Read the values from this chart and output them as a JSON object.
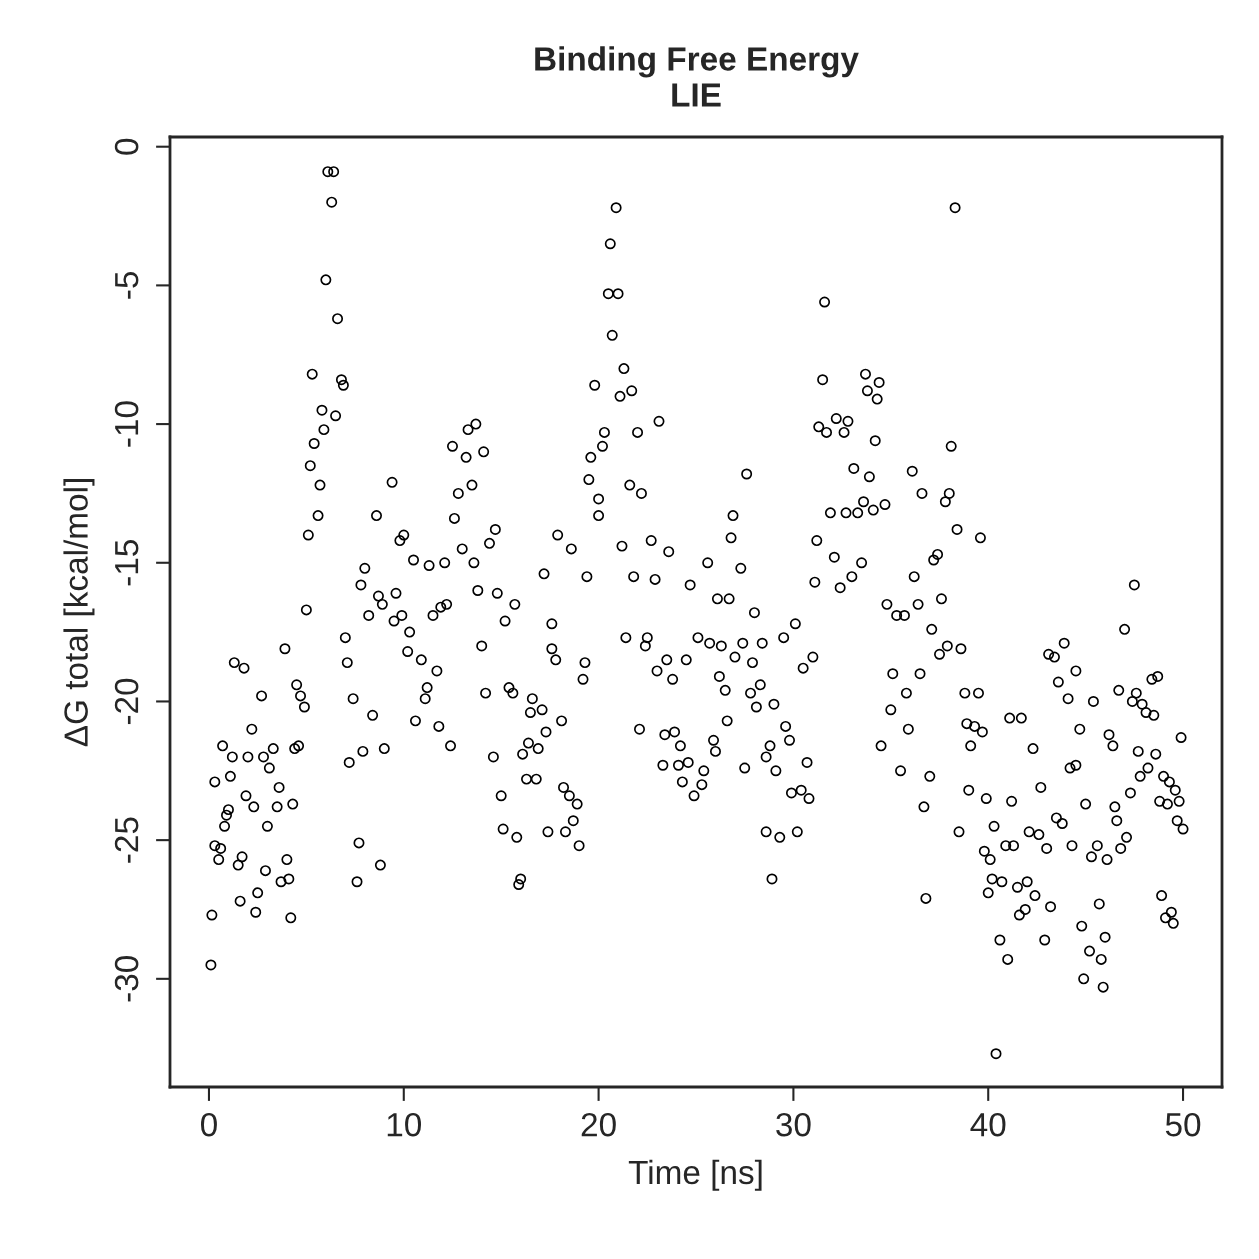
{
  "chart_data": {
    "type": "scatter",
    "title": "Binding Free Energy\nLIE",
    "xlabel": "Time [ns]",
    "ylabel": "ΔG total [kcal/mol]",
    "xlim": [
      -2,
      52
    ],
    "ylim": [
      -33.9,
      0.35
    ],
    "xticks": [
      0,
      10,
      20,
      30,
      40,
      50
    ],
    "yticks": [
      0,
      -5,
      -10,
      -15,
      -20,
      -25,
      -30
    ],
    "grid": false,
    "legend": false,
    "marker": "circle",
    "series": [
      {
        "color": "#000000",
        "x": [
          0.1,
          0.15,
          0.3,
          0.3,
          0.5,
          0.6,
          0.7,
          0.8,
          0.9,
          1.0,
          1.1,
          1.2,
          1.3,
          1.5,
          1.6,
          1.7,
          1.8,
          1.9,
          2.0,
          2.2,
          2.3,
          2.4,
          2.5,
          2.7,
          2.8,
          2.9,
          3.0,
          3.1,
          3.3,
          3.5,
          3.6,
          3.7,
          3.9,
          4.0,
          4.1,
          4.2,
          4.3,
          4.4,
          4.5,
          4.6,
          4.7,
          4.9,
          5.0,
          5.1,
          5.2,
          5.3,
          5.4,
          5.6,
          5.7,
          5.8,
          5.9,
          6.0,
          6.1,
          6.3,
          6.4,
          6.5,
          6.6,
          6.8,
          6.9,
          7.0,
          7.1,
          7.2,
          7.4,
          7.6,
          7.7,
          7.8,
          7.9,
          8.0,
          8.2,
          8.4,
          8.6,
          8.7,
          8.8,
          8.9,
          9.0,
          9.4,
          9.5,
          9.6,
          9.8,
          9.9,
          10.0,
          10.2,
          10.3,
          10.5,
          10.6,
          10.9,
          11.1,
          11.2,
          11.3,
          11.5,
          11.7,
          11.8,
          11.9,
          12.1,
          12.2,
          12.4,
          12.5,
          12.6,
          12.8,
          13.0,
          13.2,
          13.3,
          13.5,
          13.6,
          13.7,
          13.8,
          14.0,
          14.1,
          14.2,
          14.4,
          14.6,
          14.7,
          14.8,
          15.0,
          15.1,
          15.2,
          15.4,
          15.6,
          15.7,
          15.8,
          15.9,
          16.0,
          16.1,
          16.3,
          16.4,
          16.5,
          16.6,
          16.8,
          16.9,
          17.1,
          17.2,
          17.3,
          17.4,
          17.6,
          17.6,
          17.8,
          17.9,
          18.1,
          18.2,
          18.3,
          18.5,
          18.6,
          18.7,
          18.9,
          19.0,
          19.2,
          19.3,
          19.4,
          19.5,
          19.6,
          19.8,
          20.0,
          20.0,
          20.2,
          20.3,
          20.5,
          20.6,
          20.7,
          20.9,
          21.0,
          21.1,
          21.2,
          21.3,
          21.4,
          21.6,
          21.7,
          21.8,
          22.0,
          22.1,
          22.2,
          22.4,
          22.5,
          22.7,
          22.9,
          23.0,
          23.1,
          23.3,
          23.4,
          23.5,
          23.6,
          23.8,
          23.9,
          24.1,
          24.2,
          24.3,
          24.5,
          24.6,
          24.7,
          24.9,
          25.1,
          25.3,
          25.4,
          25.6,
          25.7,
          25.9,
          26.0,
          26.1,
          26.2,
          26.3,
          26.5,
          26.6,
          26.7,
          26.8,
          26.9,
          27.0,
          27.3,
          27.4,
          27.5,
          27.6,
          27.8,
          27.9,
          28.0,
          28.1,
          28.3,
          28.4,
          28.6,
          28.6,
          28.8,
          28.9,
          29.0,
          29.1,
          29.3,
          29.5,
          29.6,
          29.8,
          29.9,
          30.1,
          30.2,
          30.4,
          30.5,
          30.7,
          30.8,
          31.0,
          31.1,
          31.2,
          31.3,
          31.5,
          31.6,
          31.7,
          31.9,
          32.1,
          32.2,
          32.4,
          32.6,
          32.7,
          32.8,
          33.0,
          33.1,
          33.3,
          33.5,
          33.6,
          33.7,
          33.8,
          33.9,
          34.1,
          34.2,
          34.3,
          34.4,
          34.5,
          34.7,
          34.8,
          35.0,
          35.1,
          35.3,
          35.5,
          35.7,
          35.8,
          35.9,
          36.1,
          36.2,
          36.4,
          36.5,
          36.6,
          36.7,
          36.8,
          37.0,
          37.1,
          37.2,
          37.4,
          37.5,
          37.6,
          37.8,
          37.9,
          38.0,
          38.1,
          38.3,
          38.4,
          38.5,
          38.6,
          38.8,
          38.9,
          39.0,
          39.1,
          39.3,
          39.5,
          39.6,
          39.7,
          39.9,
          39.8,
          40.0,
          40.1,
          40.2,
          40.3,
          40.4,
          40.6,
          40.7,
          40.9,
          41.0,
          41.1,
          41.2,
          41.3,
          41.5,
          41.6,
          41.7,
          41.9,
          42.0,
          42.1,
          42.3,
          42.4,
          42.6,
          42.7,
          42.9,
          43.0,
          43.1,
          43.2,
          43.4,
          43.5,
          43.6,
          43.8,
          43.9,
          44.1,
          44.2,
          44.3,
          44.5,
          44.5,
          44.7,
          44.8,
          44.9,
          45.0,
          45.2,
          45.3,
          45.4,
          45.6,
          45.7,
          45.8,
          45.9,
          46.0,
          46.1,
          46.2,
          46.4,
          46.5,
          46.6,
          46.7,
          46.8,
          47.0,
          47.1,
          47.3,
          47.4,
          47.5,
          47.6,
          47.7,
          47.8,
          47.9,
          48.1,
          48.2,
          48.4,
          48.5,
          48.6,
          48.7,
          48.8,
          48.9,
          49.0,
          49.1,
          49.2,
          49.3,
          49.4,
          49.5,
          49.6,
          49.7,
          49.8,
          49.9,
          50.0
        ],
        "values": [
          -29.5,
          -27.7,
          -22.9,
          -25.2,
          -25.7,
          -25.3,
          -21.6,
          -24.5,
          -24.1,
          -23.9,
          -22.7,
          -22.0,
          -18.6,
          -25.9,
          -27.2,
          -25.6,
          -18.8,
          -23.4,
          -22.0,
          -21.0,
          -23.8,
          -27.6,
          -26.9,
          -19.8,
          -22.0,
          -26.1,
          -24.5,
          -22.4,
          -21.7,
          -23.8,
          -23.1,
          -26.5,
          -18.1,
          -25.7,
          -26.4,
          -27.8,
          -23.7,
          -21.7,
          -19.4,
          -21.6,
          -19.8,
          -20.2,
          -16.7,
          -14.0,
          -11.5,
          -8.2,
          -10.7,
          -13.3,
          -12.2,
          -9.5,
          -10.2,
          -4.8,
          -0.9,
          -2.0,
          -0.9,
          -9.7,
          -6.2,
          -8.4,
          -8.6,
          -17.7,
          -18.6,
          -22.2,
          -19.9,
          -26.5,
          -25.1,
          -15.8,
          -21.8,
          -15.2,
          -16.9,
          -20.5,
          -13.3,
          -16.2,
          -25.9,
          -16.5,
          -21.7,
          -12.1,
          -17.1,
          -16.1,
          -14.2,
          -16.9,
          -14.0,
          -18.2,
          -17.5,
          -14.9,
          -20.7,
          -18.5,
          -19.9,
          -19.5,
          -15.1,
          -16.9,
          -18.9,
          -20.9,
          -16.6,
          -15.0,
          -16.5,
          -21.6,
          -10.8,
          -13.4,
          -12.5,
          -14.5,
          -11.2,
          -10.2,
          -12.2,
          -15.0,
          -10.0,
          -16.0,
          -18.0,
          -11.0,
          -19.7,
          -14.3,
          -22.0,
          -13.8,
          -16.1,
          -23.4,
          -24.6,
          -17.1,
          -19.5,
          -19.7,
          -16.5,
          -24.9,
          -26.6,
          -26.4,
          -21.9,
          -22.8,
          -21.5,
          -20.4,
          -19.9,
          -22.8,
          -21.7,
          -20.3,
          -15.4,
          -21.1,
          -24.7,
          -17.2,
          -18.1,
          -18.5,
          -14.0,
          -20.7,
          -23.1,
          -24.7,
          -23.4,
          -14.5,
          -24.3,
          -23.7,
          -25.2,
          -19.2,
          -18.6,
          -15.5,
          -12.0,
          -11.2,
          -8.6,
          -12.7,
          -13.3,
          -10.8,
          -10.3,
          -5.3,
          -3.5,
          -6.8,
          -2.2,
          -5.3,
          -9.0,
          -14.4,
          -8.0,
          -17.7,
          -12.2,
          -8.8,
          -15.5,
          -10.3,
          -21.0,
          -12.5,
          -18.0,
          -17.7,
          -14.2,
          -15.6,
          -18.9,
          -9.9,
          -22.3,
          -21.2,
          -18.5,
          -14.6,
          -19.2,
          -21.1,
          -22.3,
          -21.6,
          -22.9,
          -18.5,
          -22.2,
          -15.8,
          -23.4,
          -17.7,
          -23.0,
          -22.5,
          -15.0,
          -17.9,
          -21.4,
          -21.8,
          -16.3,
          -19.1,
          -18.0,
          -19.6,
          -20.7,
          -16.3,
          -14.1,
          -13.3,
          -18.4,
          -15.2,
          -17.9,
          -22.4,
          -11.8,
          -19.7,
          -18.6,
          -16.8,
          -20.2,
          -19.4,
          -17.9,
          -22.0,
          -24.7,
          -21.6,
          -26.4,
          -20.1,
          -22.5,
          -24.9,
          -17.7,
          -20.9,
          -21.4,
          -23.3,
          -17.2,
          -24.7,
          -23.2,
          -18.8,
          -22.2,
          -23.5,
          -18.4,
          -15.7,
          -14.2,
          -10.1,
          -8.4,
          -5.6,
          -10.3,
          -13.2,
          -14.8,
          -9.8,
          -15.9,
          -10.3,
          -13.2,
          -9.9,
          -15.5,
          -11.6,
          -13.2,
          -15.0,
          -12.8,
          -8.2,
          -8.8,
          -11.9,
          -13.1,
          -10.6,
          -9.1,
          -8.5,
          -21.6,
          -12.9,
          -16.5,
          -20.3,
          -19.0,
          -16.9,
          -22.5,
          -16.9,
          -19.7,
          -21.0,
          -11.7,
          -15.5,
          -16.5,
          -19.0,
          -12.5,
          -23.8,
          -27.1,
          -22.7,
          -17.4,
          -14.9,
          -14.7,
          -18.3,
          -16.3,
          -12.8,
          -18.0,
          -12.5,
          -10.8,
          -2.2,
          -13.8,
          -24.7,
          -18.1,
          -19.7,
          -20.8,
          -23.2,
          -21.6,
          -20.9,
          -19.7,
          -14.1,
          -21.1,
          -23.5,
          -25.4,
          -26.9,
          -25.7,
          -26.4,
          -24.5,
          -32.7,
          -28.6,
          -26.5,
          -25.2,
          -29.3,
          -20.6,
          -23.6,
          -25.2,
          -26.7,
          -27.7,
          -20.6,
          -27.5,
          -26.5,
          -24.7,
          -21.7,
          -27.0,
          -24.8,
          -23.1,
          -28.6,
          -25.3,
          -18.3,
          -27.4,
          -18.4,
          -24.2,
          -19.3,
          -24.4,
          -17.9,
          -19.9,
          -22.4,
          -25.2,
          -22.3,
          -18.9,
          -21.0,
          -28.1,
          -30.0,
          -23.7,
          -29.0,
          -25.6,
          -20.0,
          -25.2,
          -27.3,
          -29.3,
          -30.3,
          -28.5,
          -25.7,
          -21.2,
          -21.6,
          -23.8,
          -24.3,
          -19.6,
          -25.3,
          -17.4,
          -24.9,
          -23.3,
          -20.0,
          -15.8,
          -19.7,
          -21.8,
          -22.7,
          -20.1,
          -20.4,
          -22.4,
          -19.2,
          -20.5,
          -21.9,
          -19.1,
          -23.6,
          -27.0,
          -22.7,
          -27.8,
          -23.7,
          -22.9,
          -27.6,
          -28.0,
          -23.2,
          -24.3,
          -23.6,
          -21.3,
          -24.6
        ]
      }
    ]
  }
}
